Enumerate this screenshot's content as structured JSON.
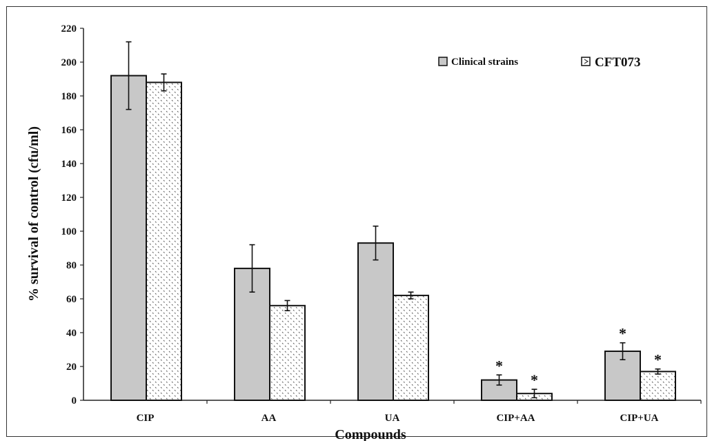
{
  "chart_data": {
    "type": "bar",
    "title": "",
    "xlabel": "Compounds",
    "ylabel": "% survival of control (cfu/ml)",
    "ylim": [
      0,
      220
    ],
    "yticks": [
      "0",
      "20",
      "40",
      "60",
      "80",
      "100",
      "120",
      "140",
      "160",
      "180",
      "200",
      "220"
    ],
    "categories": [
      "CIP",
      "AA",
      "UA",
      "CIP+AA",
      "CIP+UA"
    ],
    "legend_position": "top-right",
    "grid": false,
    "series": [
      {
        "name": "Clinical strains",
        "color": "#c8c8c8",
        "pattern": "solid",
        "values": [
          192,
          78,
          93,
          12,
          29
        ],
        "errors": [
          20,
          14,
          10,
          3,
          5
        ]
      },
      {
        "name": "CFT073",
        "color": "#ffffff",
        "pattern": "dotted",
        "values": [
          188,
          56,
          62,
          4,
          17
        ],
        "errors": [
          5,
          3,
          2,
          2.5,
          1.5
        ]
      }
    ],
    "annotations": [
      {
        "category": "CIP+AA",
        "series": 0,
        "text": "*"
      },
      {
        "category": "CIP+AA",
        "series": 1,
        "text": "*"
      },
      {
        "category": "CIP+UA",
        "series": 0,
        "text": "*"
      },
      {
        "category": "CIP+UA",
        "series": 1,
        "text": "*"
      }
    ]
  }
}
